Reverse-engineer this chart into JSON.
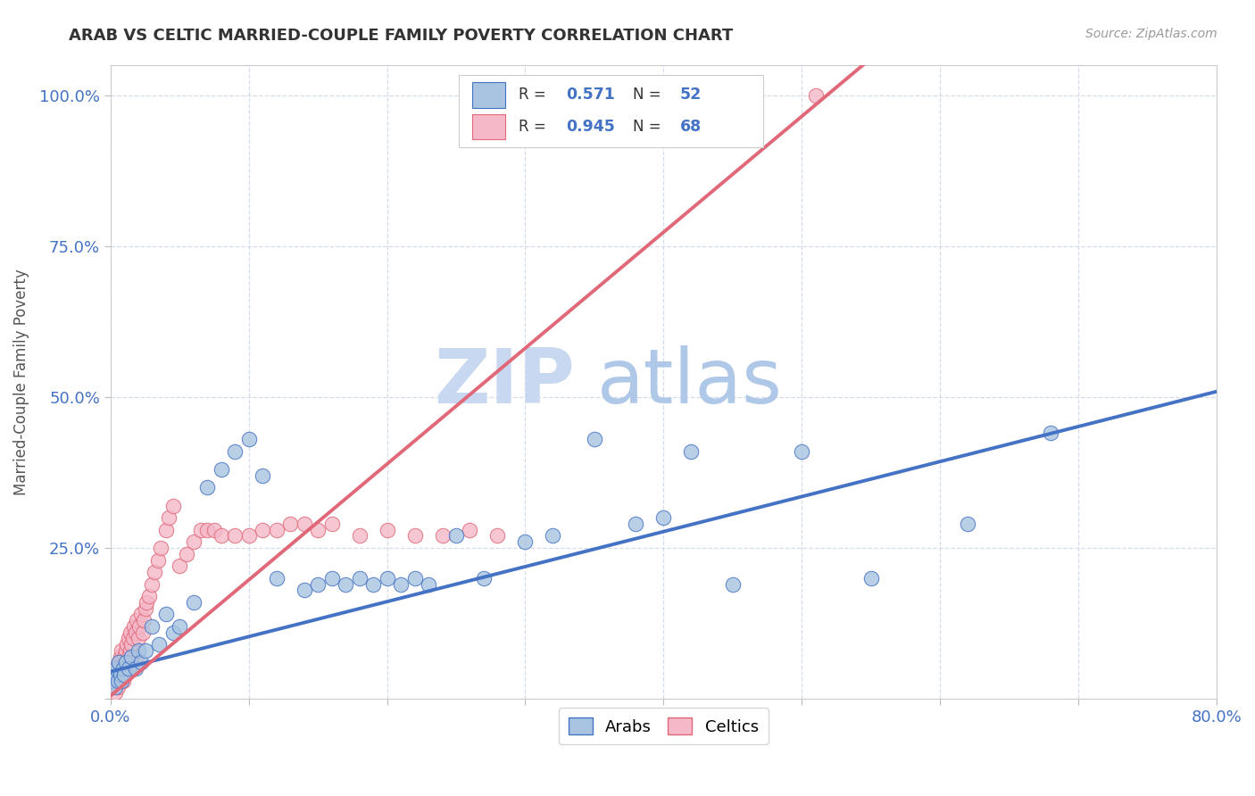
{
  "title": "ARAB VS CELTIC MARRIED-COUPLE FAMILY POVERTY CORRELATION CHART",
  "source": "Source: ZipAtlas.com",
  "ylabel": "Married-Couple Family Poverty",
  "xlim": [
    0.0,
    0.8
  ],
  "ylim": [
    0.0,
    1.05
  ],
  "arab_R": 0.571,
  "arab_N": 52,
  "celtic_R": 0.945,
  "celtic_N": 68,
  "arab_color": "#a8c4e0",
  "celtic_color": "#f4b8c8",
  "arab_line_color": "#4472c4",
  "celtic_line_color": "#e06878",
  "background_color": "#ffffff",
  "grid_color": "#d0d8e8",
  "watermark_zip": "ZIP",
  "watermark_atlas": "atlas",
  "watermark_color_zip": "#c8d8f0",
  "watermark_color_atlas": "#b0c8e8",
  "arab_line_slope": 0.58,
  "arab_line_intercept": 0.045,
  "celtic_line_slope": 1.92,
  "celtic_line_intercept": 0.005,
  "arab_x": [
    0.001,
    0.002,
    0.003,
    0.004,
    0.005,
    0.006,
    0.007,
    0.008,
    0.009,
    0.01,
    0.011,
    0.013,
    0.015,
    0.018,
    0.02,
    0.022,
    0.025,
    0.03,
    0.035,
    0.04,
    0.045,
    0.05,
    0.06,
    0.07,
    0.08,
    0.09,
    0.1,
    0.11,
    0.12,
    0.14,
    0.15,
    0.16,
    0.17,
    0.18,
    0.19,
    0.2,
    0.21,
    0.22,
    0.23,
    0.25,
    0.27,
    0.3,
    0.32,
    0.35,
    0.38,
    0.4,
    0.42,
    0.45,
    0.5,
    0.55,
    0.62,
    0.68
  ],
  "arab_y": [
    0.03,
    0.04,
    0.02,
    0.05,
    0.03,
    0.06,
    0.04,
    0.03,
    0.05,
    0.04,
    0.06,
    0.05,
    0.07,
    0.05,
    0.08,
    0.06,
    0.08,
    0.12,
    0.09,
    0.14,
    0.11,
    0.12,
    0.16,
    0.35,
    0.38,
    0.41,
    0.43,
    0.37,
    0.2,
    0.18,
    0.19,
    0.2,
    0.19,
    0.2,
    0.19,
    0.2,
    0.19,
    0.2,
    0.19,
    0.27,
    0.2,
    0.26,
    0.27,
    0.43,
    0.29,
    0.3,
    0.41,
    0.19,
    0.41,
    0.2,
    0.29,
    0.44
  ],
  "celtic_x": [
    0.001,
    0.002,
    0.003,
    0.004,
    0.005,
    0.005,
    0.006,
    0.006,
    0.007,
    0.007,
    0.008,
    0.008,
    0.009,
    0.009,
    0.01,
    0.01,
    0.011,
    0.011,
    0.012,
    0.012,
    0.013,
    0.013,
    0.014,
    0.014,
    0.015,
    0.015,
    0.016,
    0.017,
    0.018,
    0.018,
    0.019,
    0.02,
    0.021,
    0.022,
    0.023,
    0.024,
    0.025,
    0.026,
    0.028,
    0.03,
    0.032,
    0.034,
    0.036,
    0.04,
    0.042,
    0.045,
    0.05,
    0.055,
    0.06,
    0.065,
    0.07,
    0.075,
    0.08,
    0.09,
    0.1,
    0.11,
    0.12,
    0.13,
    0.14,
    0.15,
    0.16,
    0.18,
    0.2,
    0.22,
    0.24,
    0.26,
    0.28,
    0.51
  ],
  "celtic_y": [
    0.02,
    0.03,
    0.01,
    0.04,
    0.02,
    0.05,
    0.03,
    0.06,
    0.04,
    0.07,
    0.05,
    0.08,
    0.03,
    0.06,
    0.04,
    0.07,
    0.05,
    0.08,
    0.06,
    0.09,
    0.07,
    0.1,
    0.08,
    0.11,
    0.06,
    0.09,
    0.1,
    0.12,
    0.07,
    0.11,
    0.13,
    0.1,
    0.12,
    0.14,
    0.11,
    0.13,
    0.15,
    0.16,
    0.17,
    0.19,
    0.21,
    0.23,
    0.25,
    0.28,
    0.3,
    0.32,
    0.22,
    0.24,
    0.26,
    0.28,
    0.28,
    0.28,
    0.27,
    0.27,
    0.27,
    0.28,
    0.28,
    0.29,
    0.29,
    0.28,
    0.29,
    0.27,
    0.28,
    0.27,
    0.27,
    0.28,
    0.27,
    1.0
  ]
}
